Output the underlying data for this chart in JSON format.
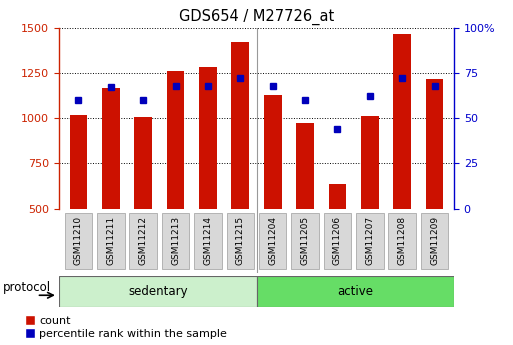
{
  "title": "GDS654 / M27726_at",
  "samples": [
    "GSM11210",
    "GSM11211",
    "GSM11212",
    "GSM11213",
    "GSM11214",
    "GSM11215",
    "GSM11204",
    "GSM11205",
    "GSM11206",
    "GSM11207",
    "GSM11208",
    "GSM11209"
  ],
  "counts": [
    1020,
    1165,
    1005,
    1260,
    1285,
    1420,
    1130,
    975,
    635,
    1010,
    1465,
    1215
  ],
  "percentiles": [
    60,
    67,
    60,
    68,
    68,
    72,
    68,
    60,
    44,
    62,
    72,
    68
  ],
  "groups": [
    "sedentary",
    "sedentary",
    "sedentary",
    "sedentary",
    "sedentary",
    "sedentary",
    "active",
    "active",
    "active",
    "active",
    "active",
    "active"
  ],
  "group_colors": {
    "sedentary": "#ccf0cc",
    "active": "#66dd66"
  },
  "bar_color": "#cc1100",
  "dot_color": "#0000bb",
  "bar_bottom": 500,
  "ylim_left": [
    500,
    1500
  ],
  "ylim_right": [
    0,
    100
  ],
  "yticks_left": [
    500,
    750,
    1000,
    1250,
    1500
  ],
  "yticks_right": [
    0,
    25,
    50,
    75,
    100
  ],
  "legend_red_label": "count",
  "legend_blue_label": "percentile rank within the sample",
  "protocol_label": "protocol",
  "bg_color": "#ffffff",
  "bar_width": 0.55,
  "n_sedentary": 6,
  "n_active": 6
}
